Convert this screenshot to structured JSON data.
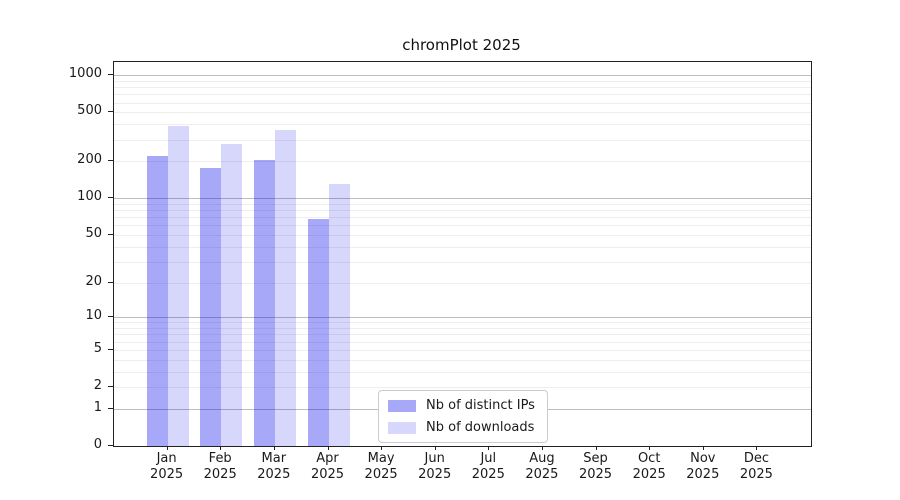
{
  "chart_data": {
    "type": "bar",
    "title": "chromPlot 2025",
    "categories": [
      "Jan",
      "Feb",
      "Mar",
      "Apr",
      "May",
      "Jun",
      "Jul",
      "Aug",
      "Sep",
      "Oct",
      "Nov",
      "Dec"
    ],
    "category_sublabel": "2025",
    "series": [
      {
        "name": "Nb of distinct IPs",
        "color": "rgba(0,0,235,0.34)",
        "values": [
          220,
          175,
          205,
          68,
          0,
          0,
          0,
          0,
          0,
          0,
          0,
          0
        ]
      },
      {
        "name": "Nb of downloads",
        "color": "rgba(0,0,235,0.155)",
        "values": [
          385,
          275,
          360,
          130,
          0,
          0,
          0,
          0,
          0,
          0,
          0,
          0
        ]
      }
    ],
    "xlabel": "",
    "ylabel": "",
    "yscale": "log10(value+1)",
    "ylim": [
      0,
      1276
    ],
    "yticks": [
      0,
      1,
      2,
      5,
      10,
      20,
      50,
      100,
      200,
      500,
      1000
    ],
    "grid": "horizontal major (powers of 10) and minor (2-9 per decade) gridlines",
    "legend_position": "lower center, inside axes",
    "colors": {
      "major_gridline": "#bdbdbd",
      "minor_gridline": "#eeeeee",
      "spine": "#222222",
      "text": "#1a1a1a"
    }
  }
}
